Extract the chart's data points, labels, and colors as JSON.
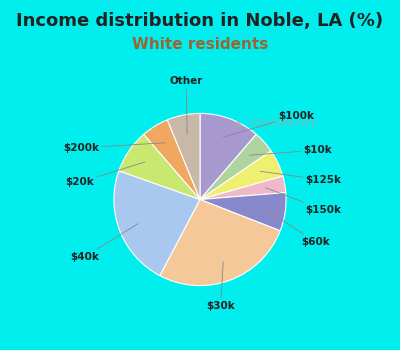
{
  "title": "Income distribution in Noble, LA (%)",
  "subtitle": "White residents",
  "title_fontsize": 13,
  "subtitle_fontsize": 11,
  "title_color": "#222222",
  "subtitle_color": "#996633",
  "background_color": "#00EEEE",
  "chart_bg": [
    "#e8f4ee",
    "#d8eef0"
  ],
  "labels": [
    "$100k",
    "$10k",
    "$125k",
    "$150k",
    "$60k",
    "$30k",
    "$40k",
    "$20k",
    "$200k",
    "Other"
  ],
  "sizes": [
    11,
    4,
    5,
    3,
    7,
    26,
    22,
    8,
    5,
    6
  ],
  "colors": [
    "#a898d0",
    "#b0d4a0",
    "#f0f070",
    "#f0b8c8",
    "#8888cc",
    "#f5c89a",
    "#a8c8f0",
    "#c8e870",
    "#f0a860",
    "#c8b8a8"
  ],
  "startangle": 90,
  "label_offsets": {
    "$100k": [
      0.68,
      0.68,
      "left"
    ],
    "$10k": [
      0.9,
      0.38,
      "left"
    ],
    "$125k": [
      0.92,
      0.12,
      "left"
    ],
    "$150k": [
      0.92,
      -0.14,
      "left"
    ],
    "$60k": [
      0.88,
      -0.42,
      "left"
    ],
    "$30k": [
      0.18,
      -0.98,
      "center"
    ],
    "$40k": [
      -0.88,
      -0.55,
      "right"
    ],
    "$20k": [
      -0.92,
      0.1,
      "right"
    ],
    "$200k": [
      -0.88,
      0.4,
      "right"
    ],
    "Other": [
      -0.12,
      0.98,
      "center"
    ]
  }
}
